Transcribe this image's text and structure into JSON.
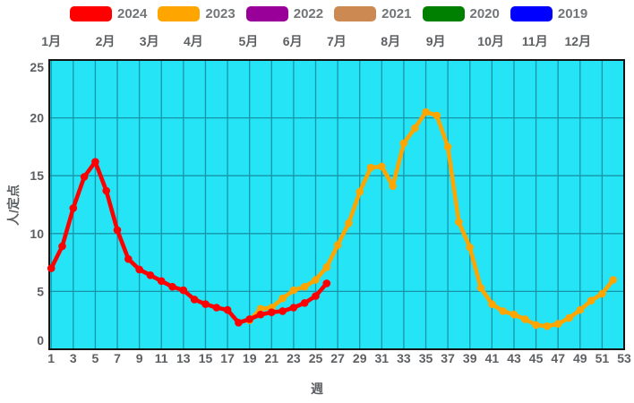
{
  "chart_data": {
    "type": "line",
    "title": "",
    "xlabel": "週",
    "ylabel": "人/定点",
    "xlim": [
      1,
      53
    ],
    "ylim": [
      0,
      25
    ],
    "x_ticks": [
      1,
      3,
      5,
      7,
      9,
      11,
      13,
      15,
      17,
      19,
      21,
      23,
      25,
      27,
      29,
      31,
      33,
      35,
      37,
      39,
      41,
      43,
      45,
      47,
      49,
      51,
      53
    ],
    "y_ticks": [
      0,
      5,
      10,
      15,
      20,
      25
    ],
    "grid": "on",
    "legend_position": "top",
    "plot_bg_color": "#24e4f6",
    "grid_color": "#1795a8",
    "frame_color": "#141414",
    "tick_text_color": "#5c5f62",
    "month_labels": [
      {
        "label": "1月",
        "week": 1.0
      },
      {
        "label": "2月",
        "week": 5.9
      },
      {
        "label": "3月",
        "week": 9.9
      },
      {
        "label": "4月",
        "week": 13.9
      },
      {
        "label": "5月",
        "week": 18.9
      },
      {
        "label": "6月",
        "week": 22.9
      },
      {
        "label": "7月",
        "week": 26.9
      },
      {
        "label": "8月",
        "week": 31.8
      },
      {
        "label": "9月",
        "week": 35.9
      },
      {
        "label": "10月",
        "week": 40.9
      },
      {
        "label": "11月",
        "week": 44.9
      },
      {
        "label": "12月",
        "week": 48.8
      }
    ],
    "series": [
      {
        "name": "2024",
        "color": "#ff0000",
        "start_week": 1,
        "values": [
          7.0,
          8.9,
          12.2,
          14.9,
          16.2,
          13.7,
          10.3,
          7.8,
          6.9,
          6.4,
          5.9,
          5.4,
          5.1,
          4.3,
          3.9,
          3.6,
          3.4,
          2.3,
          2.6,
          3.0,
          3.2,
          3.3,
          3.6,
          4.0,
          4.6,
          5.7
        ]
      },
      {
        "name": "2023",
        "color": "#ffa500",
        "start_week": 19,
        "values": [
          2.5,
          3.5,
          3.6,
          4.4,
          5.1,
          5.4,
          6.0,
          7.1,
          9.0,
          10.9,
          13.6,
          15.7,
          15.8,
          14.1,
          17.8,
          19.1,
          20.5,
          20.2,
          17.5,
          11.0,
          8.8,
          5.3,
          3.9,
          3.3,
          3.0,
          2.6,
          2.1,
          2.0,
          2.2,
          2.7,
          3.4,
          4.2,
          4.8,
          6.0
        ]
      },
      {
        "name": "2022",
        "color": "#990099",
        "start_week": null,
        "values": []
      },
      {
        "name": "2021",
        "color": "#cc8a52",
        "start_week": null,
        "values": []
      },
      {
        "name": "2020",
        "color": "#008000",
        "start_week": null,
        "values": []
      },
      {
        "name": "2019",
        "color": "#0000ff",
        "start_week": null,
        "values": []
      }
    ]
  }
}
